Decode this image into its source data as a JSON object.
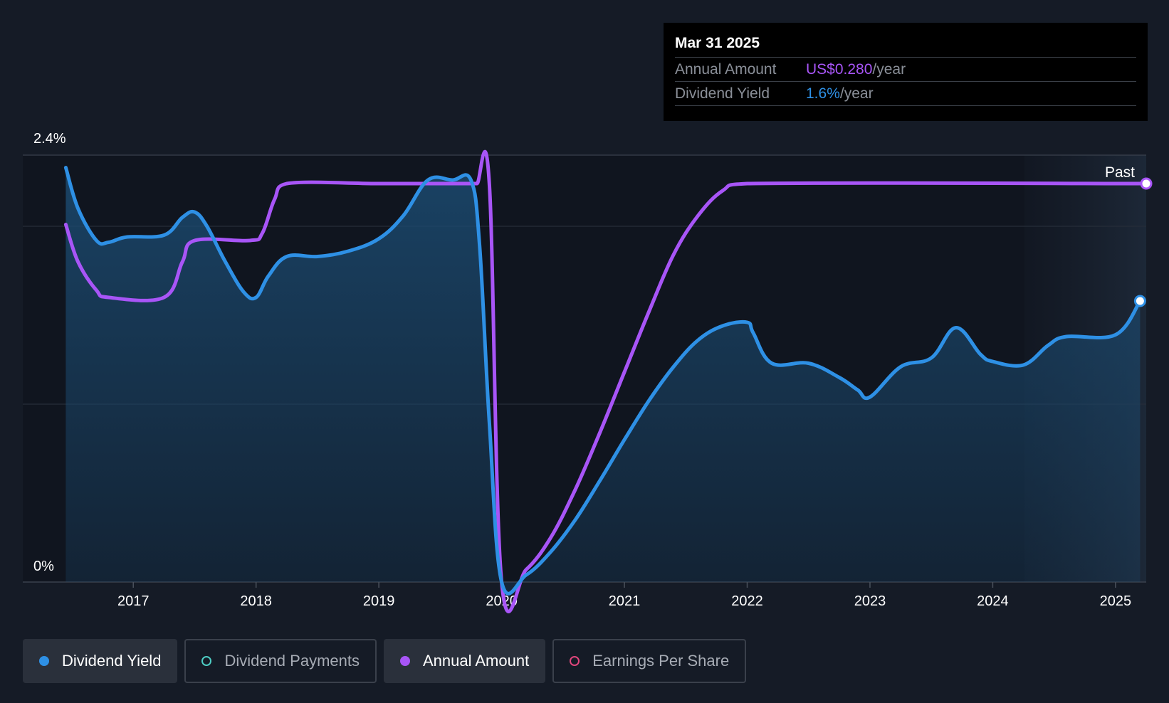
{
  "chart_data": {
    "type": "line",
    "y_axis": {
      "min_label": "0%",
      "max_label": "2.4%",
      "ylim": [
        0,
        2.4
      ]
    },
    "x_axis": {
      "tick_labels": [
        "2017",
        "2018",
        "2019",
        "2020",
        "2021",
        "2022",
        "2023",
        "2024",
        "2025"
      ],
      "xlim": [
        2016.1,
        2025.25
      ]
    },
    "past_label": "Past",
    "series": [
      {
        "name": "Dividend Yield",
        "color": "#2e90e5",
        "unit": "%",
        "x": [
          2016.45,
          2016.55,
          2016.7,
          2016.8,
          2016.95,
          2017.25,
          2017.4,
          2017.5,
          2017.6,
          2017.75,
          2017.9,
          2018.0,
          2018.1,
          2018.25,
          2018.5,
          2018.75,
          2019.0,
          2019.2,
          2019.4,
          2019.6,
          2019.75,
          2019.82,
          2019.9,
          2020.0,
          2020.2,
          2020.4,
          2020.6,
          2020.8,
          2021.0,
          2021.2,
          2021.4,
          2021.6,
          2021.8,
          2022.0,
          2022.05,
          2022.2,
          2022.5,
          2022.75,
          2022.9,
          2023.0,
          2023.25,
          2023.5,
          2023.7,
          2023.9,
          2024.0,
          2024.25,
          2024.45,
          2024.6,
          2025.0,
          2025.2
        ],
        "y": [
          2.33,
          2.1,
          1.92,
          1.91,
          1.94,
          1.95,
          2.05,
          2.08,
          2.0,
          1.8,
          1.63,
          1.6,
          1.72,
          1.83,
          1.83,
          1.86,
          1.93,
          2.06,
          2.26,
          2.26,
          2.26,
          1.9,
          0.9,
          0.0,
          0.04,
          0.17,
          0.35,
          0.57,
          0.8,
          1.02,
          1.21,
          1.36,
          1.44,
          1.46,
          1.4,
          1.23,
          1.23,
          1.15,
          1.08,
          1.04,
          1.21,
          1.26,
          1.43,
          1.28,
          1.24,
          1.22,
          1.33,
          1.38,
          1.39,
          1.58
        ]
      },
      {
        "name": "Annual Amount",
        "color": "#a855f7",
        "x": [
          2016.45,
          2016.55,
          2016.7,
          2016.8,
          2017.25,
          2017.4,
          2017.5,
          2017.95,
          2018.05,
          2018.15,
          2018.25,
          2019.0,
          2019.75,
          2019.8,
          2019.9,
          2020.0,
          2020.2,
          2020.4,
          2020.6,
          2020.8,
          2021.0,
          2021.2,
          2021.4,
          2021.6,
          2021.8,
          2022.0,
          2025.25
        ],
        "y": [
          2.01,
          1.8,
          1.64,
          1.6,
          1.6,
          1.8,
          1.92,
          1.92,
          1.96,
          2.15,
          2.24,
          2.24,
          2.24,
          2.24,
          2.24,
          0.0,
          0.07,
          0.25,
          0.52,
          0.84,
          1.18,
          1.52,
          1.84,
          2.06,
          2.2,
          2.24,
          2.24
        ]
      }
    ],
    "legend": [
      {
        "label": "Dividend Yield",
        "active": true,
        "color": "#2e90e5"
      },
      {
        "label": "Dividend Payments",
        "active": false,
        "color": "#4ecdc4"
      },
      {
        "label": "Annual Amount",
        "active": true,
        "color": "#a855f7"
      },
      {
        "label": "Earnings Per Share",
        "active": false,
        "color": "#e0467c"
      }
    ]
  },
  "tooltip": {
    "date": "Mar 31 2025",
    "annual_amount_label": "Annual Amount",
    "annual_amount_value": "US$0.280",
    "annual_amount_unit": "/year",
    "dividend_yield_label": "Dividend Yield",
    "dividend_yield_value": "1.6%",
    "dividend_yield_unit": "/year"
  }
}
